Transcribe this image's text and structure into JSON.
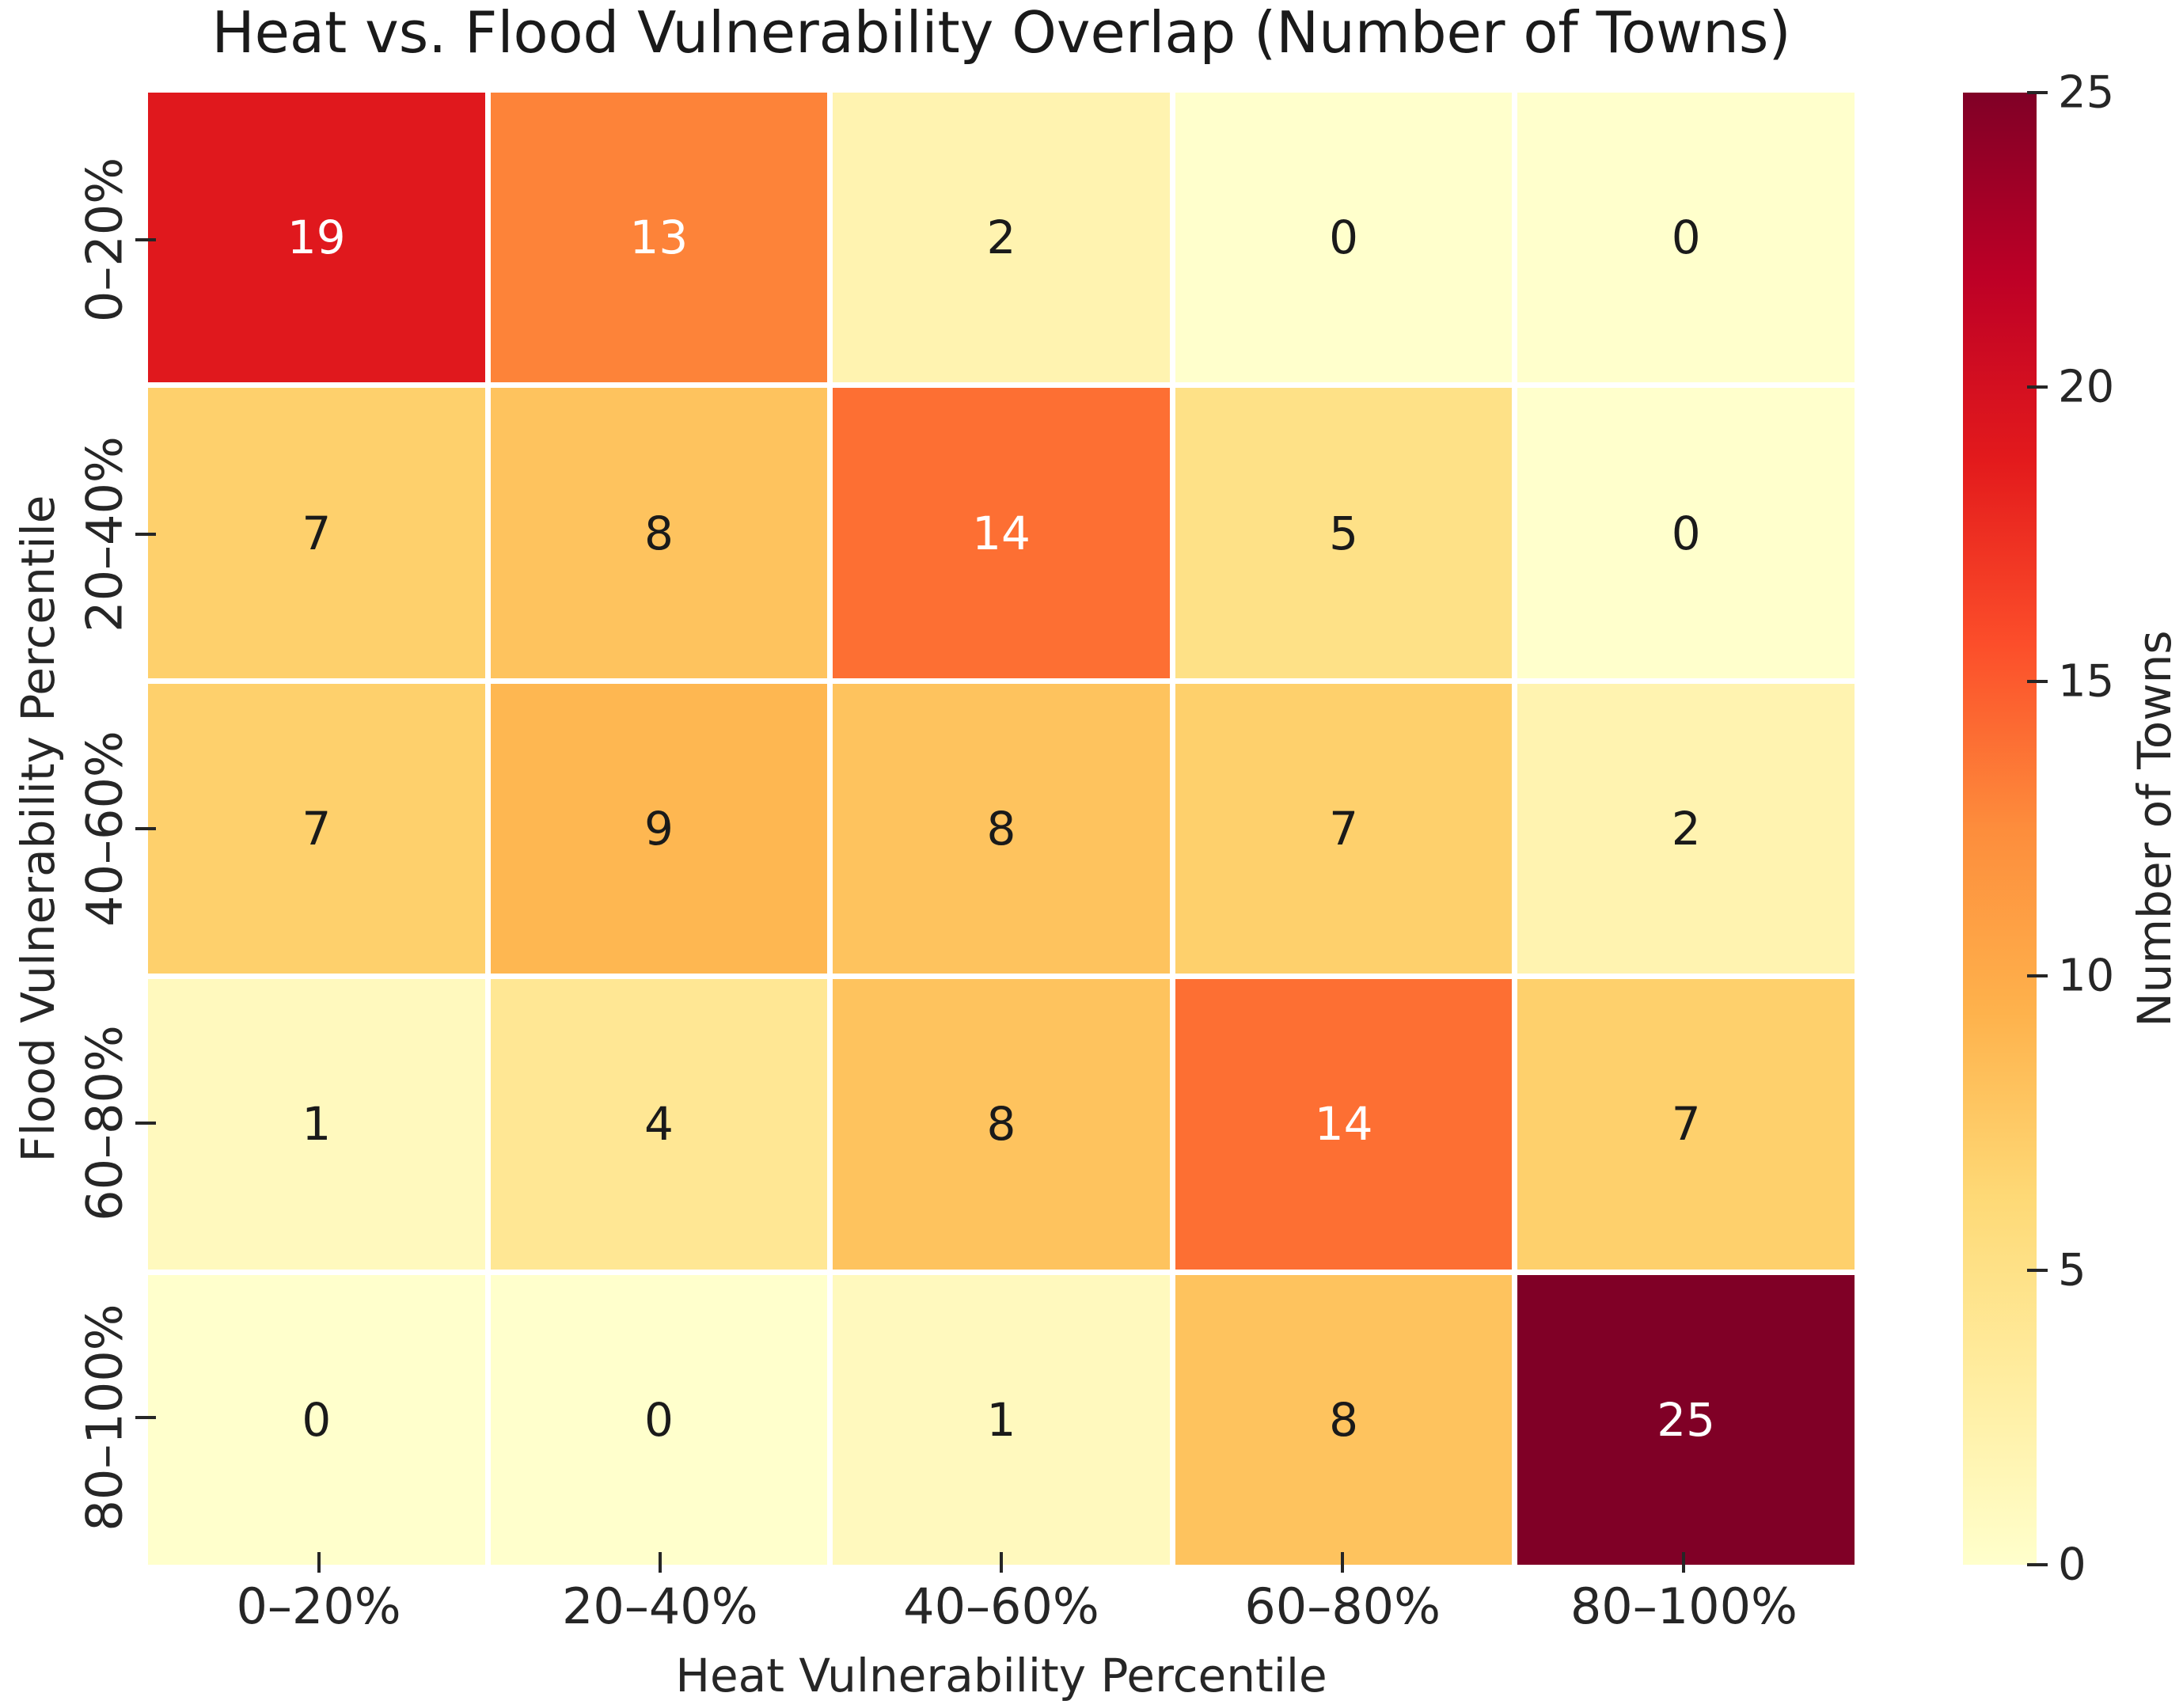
{
  "chart_data": {
    "type": "heatmap",
    "title": "Heat vs. Flood Vulnerability Overlap (Number of Towns)",
    "xlabel": "Heat Vulnerability Percentile",
    "ylabel": "Flood Vulnerability Percentile",
    "x_categories": [
      "0–20%",
      "20–40%",
      "40–60%",
      "60–80%",
      "80–100%"
    ],
    "y_categories": [
      "0–20%",
      "20–40%",
      "40–60%",
      "60–80%",
      "80–100%"
    ],
    "values": [
      [
        19,
        13,
        2,
        0,
        0
      ],
      [
        7,
        8,
        14,
        5,
        0
      ],
      [
        7,
        9,
        8,
        7,
        2
      ],
      [
        1,
        4,
        8,
        14,
        7
      ],
      [
        0,
        0,
        1,
        8,
        25
      ]
    ],
    "vmin": 0,
    "vmax": 25,
    "colormap": "YlOrRd",
    "colormap_stops": [
      "#ffffcc",
      "#ffeda0",
      "#fed976",
      "#feb24c",
      "#fd8d3c",
      "#fc4e2a",
      "#e31a1c",
      "#bd0026",
      "#800026"
    ],
    "cell_line_color": "#ffffff",
    "annotation_color_dark": "#1a1a1a",
    "annotation_color_light": "#ffffff",
    "tick_color": "#262626",
    "grid_on": false,
    "colorbar": {
      "label": "Number of Towns",
      "ticks": [
        0,
        5,
        10,
        15,
        20,
        25
      ],
      "min": 0,
      "max": 25,
      "position": "right"
    }
  }
}
